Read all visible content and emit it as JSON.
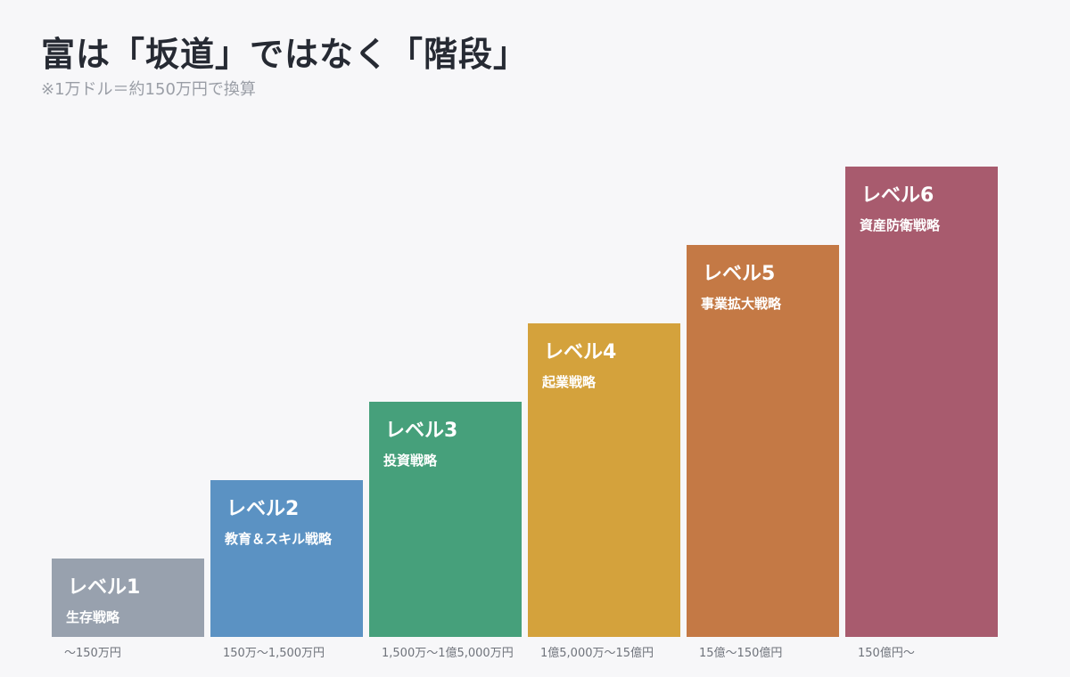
{
  "title": "富は「坂道」ではなく「階段」",
  "subtitle": "※1万ドル＝約150万円で換算",
  "chart_data": {
    "type": "bar",
    "categories": [
      "レベル1",
      "レベル2",
      "レベル3",
      "レベル4",
      "レベル5",
      "レベル6"
    ],
    "values": [
      1,
      2,
      3,
      4,
      5,
      6
    ],
    "strategies": [
      "生存戦略",
      "教育＆スキル戦略",
      "投資戦略",
      "起業戦略",
      "事業拡大戦略",
      "資産防衛戦略"
    ],
    "ranges": [
      "〜150万円",
      "150万〜1,500万円",
      "1,500万〜1億5,000万円",
      "1億5,000万〜15億円",
      "15億〜150億円",
      "150億円〜"
    ],
    "colors": [
      "#98a1ae",
      "#5b92c3",
      "#46a07b",
      "#d4a23c",
      "#c47945",
      "#a85b6e"
    ],
    "ylim": [
      0,
      6
    ],
    "grid": false,
    "legend": "none"
  }
}
